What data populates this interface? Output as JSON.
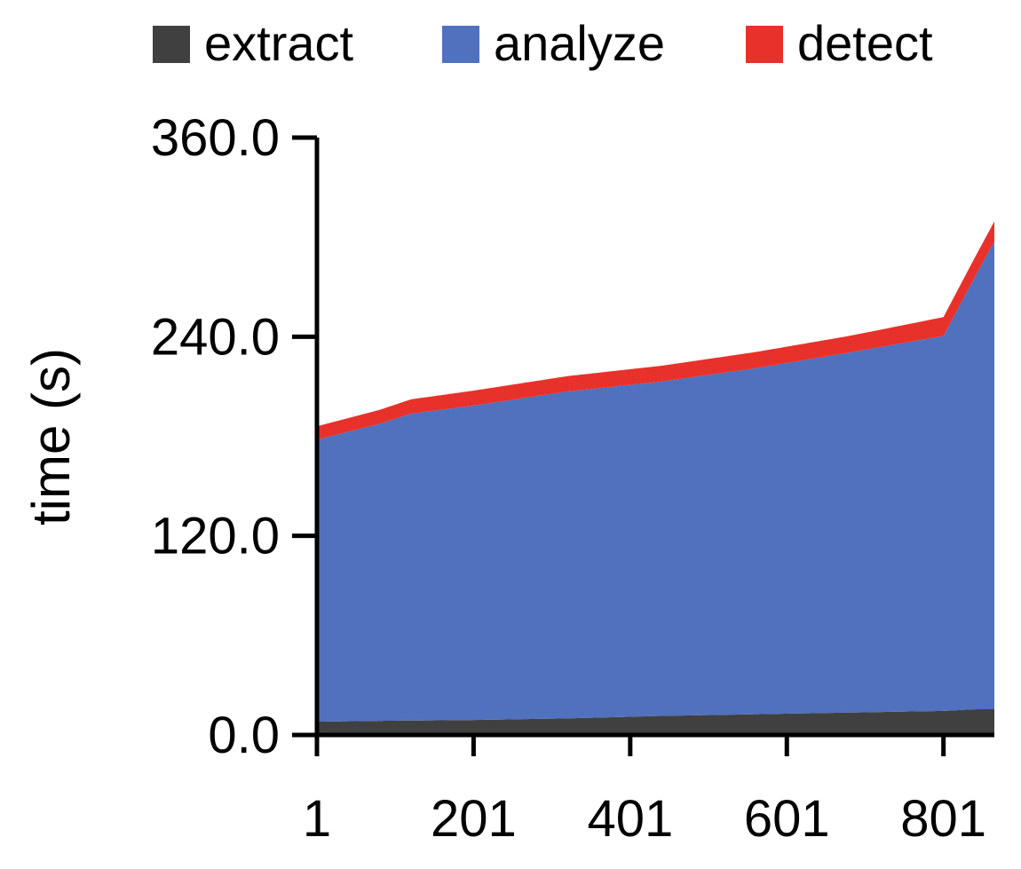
{
  "chart_data": {
    "type": "area",
    "stacked": true,
    "title": "",
    "xlabel": "",
    "ylabel": "time (s)",
    "xlim": [
      1,
      866
    ],
    "ylim": [
      0,
      360
    ],
    "x_ticks": [
      "1",
      "201",
      "401",
      "601",
      "801"
    ],
    "y_ticks": [
      "0.0",
      "120.0",
      "240.0",
      "360.0"
    ],
    "grid": false,
    "legend_position": "top",
    "series": [
      {
        "name": "extract",
        "color": "#404040",
        "x": [
          1,
          81,
          201,
          321,
          441,
          561,
          681,
          801,
          841,
          866
        ],
        "values": [
          8,
          8.5,
          9,
          10,
          11.5,
          12.5,
          13.5,
          14.5,
          15.5,
          15.5
        ]
      },
      {
        "name": "analyze",
        "color": "#4F71BE",
        "x": [
          1,
          81,
          121,
          201,
          321,
          441,
          561,
          681,
          801,
          866
        ],
        "values": [
          170,
          179,
          185,
          189.5,
          197,
          201.5,
          208.5,
          217,
          226,
          282
        ]
      },
      {
        "name": "detect",
        "color": "#E8312A",
        "x": [
          1,
          201,
          441,
          681,
          866
        ],
        "values": [
          8,
          9,
          9.5,
          10,
          12
        ]
      }
    ]
  }
}
